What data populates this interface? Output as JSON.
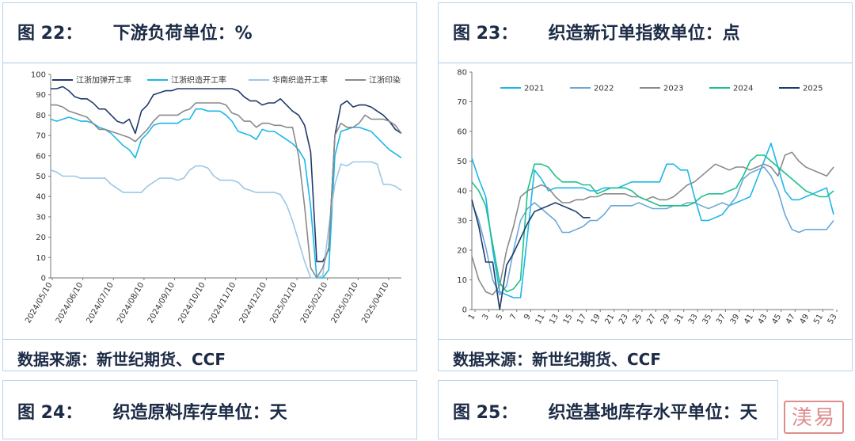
{
  "panels": [
    {
      "title": "图 22：     下游负荷单位：%",
      "source": "数据来源：新世纪期货、CCF"
    },
    {
      "title": "图 23：     织造新订单指数单位：点",
      "source": "数据来源：新世纪期货、CCF"
    },
    {
      "title": "图 24：     织造原料库存单位：天"
    },
    {
      "title": "图 25：     织造基地库存水平单位：天"
    }
  ],
  "stamp_text": "渼易",
  "chart_data": [
    {
      "type": "line",
      "title": "",
      "ylim": [
        0,
        100
      ],
      "yticks": [
        0,
        10,
        20,
        30,
        40,
        50,
        60,
        70,
        80,
        90,
        100
      ],
      "xlabels": [
        "2024/05/10",
        "2024/06/10",
        "2024/07/10",
        "2024/08/10",
        "2024/09/10",
        "2024/10/10",
        "2024/11/10",
        "2024/12/10",
        "2025/01/10",
        "2025/02/10",
        "2025/03/10",
        "2025/04/10"
      ],
      "legend_placement": "top",
      "series": [
        {
          "name": "江浙加弹开工率",
          "color": "#1f3a6b",
          "values": [
            93,
            93,
            94,
            92,
            89,
            88,
            88,
            86,
            83,
            83,
            80,
            77,
            76,
            78,
            71,
            82,
            85,
            90,
            91,
            92,
            92,
            93,
            93,
            93,
            93,
            93,
            93,
            93,
            93,
            93,
            93,
            92,
            89,
            87,
            87,
            85,
            86,
            86,
            88,
            85,
            82,
            80,
            75,
            62,
            8,
            8,
            14,
            70,
            85,
            87,
            84,
            85,
            85,
            84,
            82,
            80,
            77,
            73,
            71
          ]
        },
        {
          "name": "江浙织造开工率",
          "color": "#1bb7e8",
          "values": [
            78,
            77,
            78,
            79,
            78,
            77,
            77,
            76,
            74,
            73,
            71,
            68,
            65,
            63,
            59,
            68,
            71,
            75,
            76,
            76,
            76,
            76,
            78,
            78,
            83,
            83,
            82,
            82,
            82,
            80,
            77,
            72,
            71,
            70,
            68,
            73,
            72,
            72,
            70,
            68,
            66,
            63,
            58,
            35,
            0,
            0,
            4,
            60,
            72,
            73,
            74,
            74,
            73,
            72,
            69,
            66,
            63,
            61,
            59
          ]
        },
        {
          "name": "华南织造开工率",
          "color": "#9cc7e6",
          "values": [
            53,
            52,
            50,
            50,
            50,
            49,
            49,
            49,
            49,
            49,
            46,
            44,
            42,
            42,
            42,
            42,
            45,
            47,
            49,
            49,
            49,
            48,
            49,
            53,
            55,
            55,
            54,
            50,
            48,
            48,
            48,
            47,
            44,
            43,
            42,
            42,
            42,
            42,
            41,
            36,
            28,
            18,
            8,
            0,
            0,
            1,
            25,
            46,
            56,
            55,
            57,
            57,
            57,
            57,
            56,
            46,
            46,
            45,
            43
          ]
        },
        {
          "name": "江浙印染",
          "color": "#8a8a8a",
          "values": [
            85,
            85,
            84,
            82,
            81,
            80,
            79,
            76,
            73,
            73,
            72,
            71,
            70,
            69,
            67,
            70,
            73,
            77,
            80,
            80,
            80,
            80,
            82,
            83,
            86,
            86,
            86,
            86,
            86,
            85,
            81,
            80,
            77,
            77,
            74,
            76,
            76,
            75,
            75,
            74,
            74,
            60,
            35,
            5,
            0,
            5,
            15,
            70,
            76,
            74,
            74,
            76,
            80,
            78,
            78,
            78,
            77,
            75,
            71
          ]
        }
      ]
    },
    {
      "type": "line",
      "title": "",
      "ylim": [
        0,
        80
      ],
      "yticks": [
        0,
        10,
        20,
        30,
        40,
        50,
        60,
        70,
        80
      ],
      "xlabels": [
        "1",
        "3",
        "5",
        "7",
        "9",
        "11",
        "13",
        "15",
        "17",
        "19",
        "21",
        "23",
        "25",
        "27",
        "29",
        "31",
        "33",
        "35",
        "37",
        "39",
        "41",
        "43",
        "45",
        "47",
        "49",
        "51",
        "53"
      ],
      "legend_placement": "top",
      "series": [
        {
          "name": "2021",
          "color": "#1bb7e8",
          "values": [
            51,
            44,
            38,
            20,
            6,
            5,
            4,
            4,
            25,
            47,
            44,
            40,
            41,
            41,
            41,
            41,
            41,
            40,
            40,
            41,
            41,
            41,
            42,
            43,
            43,
            43,
            43,
            43,
            49,
            49,
            47,
            47,
            38,
            30,
            30,
            31,
            32,
            35,
            36,
            37,
            38,
            44,
            50,
            56,
            48,
            40,
            37,
            37,
            38,
            39,
            40,
            41,
            32
          ]
        },
        {
          "name": "2022",
          "color": "#6aa8d8",
          "values": [
            36,
            30,
            21,
            10,
            5,
            8,
            20,
            30,
            34,
            36,
            34,
            32,
            30,
            26,
            26,
            27,
            28,
            30,
            30,
            32,
            35,
            35,
            35,
            35,
            36,
            35,
            34,
            34,
            34,
            35,
            35,
            36,
            36,
            35,
            34,
            35,
            36,
            35,
            38,
            44,
            46,
            47,
            48,
            45,
            40,
            32,
            27,
            26,
            27,
            27,
            27,
            27,
            30
          ]
        },
        {
          "name": "2023",
          "color": "#8a8a8a",
          "values": [
            18,
            10,
            6,
            5,
            8,
            20,
            28,
            38,
            40,
            41,
            42,
            41,
            38,
            36,
            36,
            37,
            37,
            38,
            38,
            39,
            39,
            39,
            39,
            38,
            38,
            37,
            38,
            37,
            37,
            38,
            40,
            42,
            43,
            45,
            47,
            49,
            48,
            47,
            48,
            48,
            47,
            48,
            49,
            48,
            45,
            52,
            53,
            50,
            48,
            47,
            46,
            45,
            48
          ]
        },
        {
          "name": "2024",
          "color": "#1ec08a",
          "values": [
            43,
            40,
            35,
            22,
            9,
            6,
            7,
            10,
            40,
            49,
            49,
            48,
            45,
            43,
            43,
            43,
            42,
            42,
            39,
            40,
            41,
            41,
            41,
            40,
            38,
            37,
            36,
            35,
            35,
            35,
            35,
            35,
            36,
            38,
            39,
            39,
            39,
            40,
            41,
            45,
            50,
            52,
            52,
            50,
            48,
            46,
            44,
            42,
            40,
            39,
            38,
            38,
            40
          ]
        },
        {
          "name": "2025",
          "color": "#1f3a6b",
          "values": [
            37,
            28,
            16,
            16,
            0,
            15,
            19,
            24,
            29,
            33,
            34,
            35,
            36,
            35,
            34,
            33,
            31,
            31
          ]
        }
      ]
    }
  ]
}
